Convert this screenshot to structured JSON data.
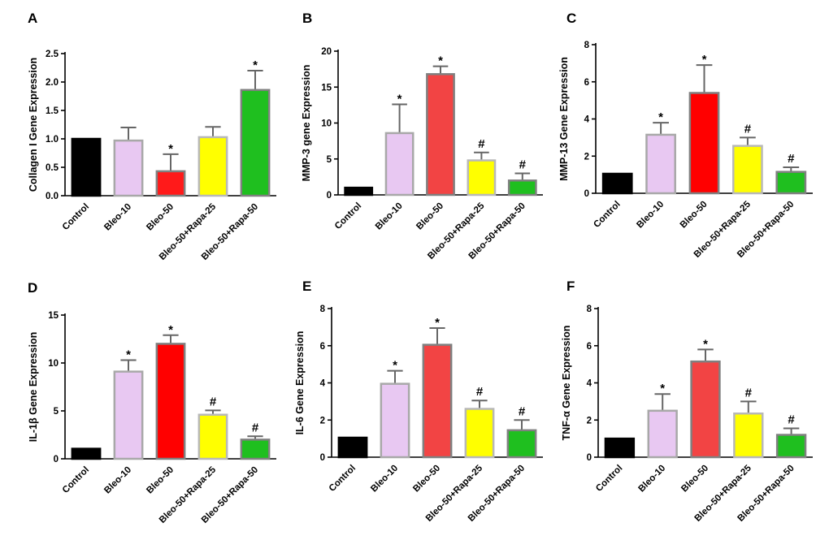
{
  "chart_data": [
    {
      "type": "bar",
      "panel": "A",
      "title": "",
      "xlabel": "",
      "ylabel": "Collagen I Gene Expression",
      "categories": [
        "Control",
        "Bleo-10",
        "Bleo-50",
        "Bleo-50+Rapa-25",
        "Bleo-50+Rapa-50"
      ],
      "values": [
        1.0,
        0.97,
        0.43,
        1.03,
        1.86
      ],
      "errors": [
        0,
        0.23,
        0.3,
        0.18,
        0.34
      ],
      "marks": [
        "",
        "",
        "*",
        "",
        "*"
      ],
      "ylim": [
        0,
        2.5
      ],
      "yticks": [
        "0.0",
        "0.5",
        "1.0",
        "1.5",
        "2.0",
        "2.5"
      ]
    },
    {
      "type": "bar",
      "panel": "B",
      "title": "",
      "xlabel": "",
      "ylabel": "MMP-3 gene Expression",
      "categories": [
        "Control",
        "Bleo-10",
        "Bleo-50",
        "Bleo-50+Rapa-25",
        "Bleo-50+Rapa-50"
      ],
      "values": [
        1.0,
        8.6,
        16.8,
        4.8,
        2.0
      ],
      "errors": [
        0,
        4.0,
        1.1,
        1.1,
        1.0
      ],
      "marks": [
        "",
        "*",
        "*",
        "#",
        "#"
      ],
      "ylim": [
        0,
        20
      ],
      "yticks": [
        "0",
        "5",
        "10",
        "15",
        "20"
      ]
    },
    {
      "type": "bar",
      "panel": "C",
      "title": "",
      "xlabel": "",
      "ylabel": "MMP-13 Gene Expression",
      "categories": [
        "Control",
        "Bleo-10",
        "Bleo-50",
        "Bleo-50+Rapa-25",
        "Bleo-50+Rapa-50"
      ],
      "values": [
        1.05,
        3.15,
        5.4,
        2.55,
        1.15
      ],
      "errors": [
        0,
        0.65,
        1.5,
        0.45,
        0.25
      ],
      "marks": [
        "",
        "*",
        "*",
        "#",
        "#"
      ],
      "ylim": [
        0,
        8
      ],
      "yticks": [
        "0",
        "2",
        "4",
        "6",
        "8"
      ]
    },
    {
      "type": "bar",
      "panel": "D",
      "title": "",
      "xlabel": "",
      "ylabel": "IL-1β Gene Expression",
      "categories": [
        "Control",
        "Bleo-10",
        "Bleo-50",
        "Bleo-50+Rapa-25",
        "Bleo-50+Rapa-50"
      ],
      "values": [
        1.05,
        9.1,
        12.0,
        4.6,
        2.0
      ],
      "errors": [
        0,
        1.2,
        0.9,
        0.45,
        0.35
      ],
      "marks": [
        "",
        "*",
        "*",
        "#",
        "#"
      ],
      "ylim": [
        0,
        15
      ],
      "yticks": [
        "0",
        "5",
        "10",
        "15"
      ]
    },
    {
      "type": "bar",
      "panel": "E",
      "title": "",
      "xlabel": "",
      "ylabel": "IL-6 Gene Expression",
      "categories": [
        "Control",
        "Bleo-10",
        "Bleo-50",
        "Bleo-50+Rapa-25",
        "Bleo-50+Rapa-50"
      ],
      "values": [
        1.05,
        3.95,
        6.05,
        2.6,
        1.45
      ],
      "errors": [
        0,
        0.7,
        0.9,
        0.45,
        0.55
      ],
      "marks": [
        "",
        "*",
        "*",
        "#",
        "#"
      ],
      "ylim": [
        0,
        8
      ],
      "yticks": [
        "0",
        "2",
        "4",
        "6",
        "8"
      ]
    },
    {
      "type": "bar",
      "panel": "F",
      "title": "",
      "xlabel": "",
      "ylabel": "TNF-α Gene Expression",
      "categories": [
        "Control",
        "Bleo-10",
        "Bleo-50",
        "Bleo-50+Rapa-25",
        "Bleo-50+Rapa-50"
      ],
      "values": [
        1.0,
        2.5,
        5.15,
        2.35,
        1.2
      ],
      "errors": [
        0,
        0.9,
        0.65,
        0.65,
        0.35
      ],
      "marks": [
        "",
        "*",
        "*",
        "#",
        "#"
      ],
      "ylim": [
        0,
        8
      ],
      "yticks": [
        "0",
        "2",
        "4",
        "6",
        "8"
      ]
    }
  ],
  "colors": {
    "bar_fills": [
      "#000000",
      "#e8c8f2",
      "#f24444",
      "#ffff00",
      "#1fbf1f"
    ],
    "bar_strokes": [
      "#000000",
      "#a8a8a8",
      "#808080",
      "#b8b8b8",
      "#808080"
    ],
    "bar_fills_by_panel": {
      "A": [
        "#000000",
        "#e8c8f2",
        "#ff1a1a",
        "#ffff00",
        "#1fbf1f"
      ],
      "C": [
        "#000000",
        "#e8c8f2",
        "#ff0000",
        "#ffff00",
        "#1fbf1f"
      ],
      "D": [
        "#000000",
        "#e8c8f2",
        "#ff0000",
        "#ffff00",
        "#1fbf1f"
      ]
    },
    "axis": "#000000",
    "error_bar": "#666666"
  }
}
